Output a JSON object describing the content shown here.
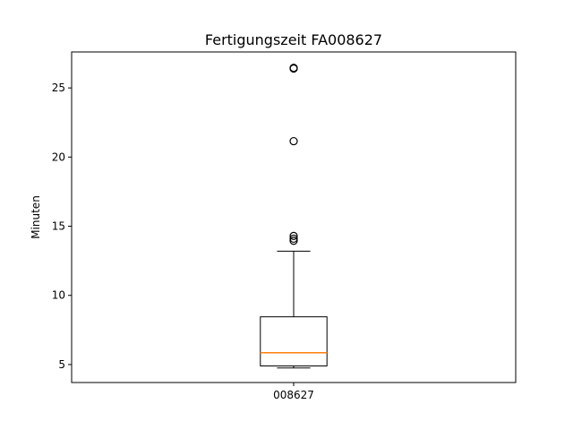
{
  "chart_data": {
    "type": "boxplot",
    "title": "Fertigungszeit FA008627",
    "xlabel": "",
    "ylabel": "Minuten",
    "categories": [
      "008627"
    ],
    "series": [
      {
        "whisker_low": 4.75,
        "q1": 4.9,
        "median": 5.85,
        "q3": 8.45,
        "whisker_high": 13.2,
        "outliers": [
          13.95,
          14.1,
          14.3,
          21.15,
          26.4,
          26.45
        ]
      }
    ],
    "ylim": [
      3.7,
      27.6
    ],
    "yticks": [
      5,
      10,
      15,
      20,
      25
    ],
    "grid": false,
    "colors": {
      "box": "#000000",
      "median": "#ff7f0e",
      "frame": "#000000"
    }
  }
}
